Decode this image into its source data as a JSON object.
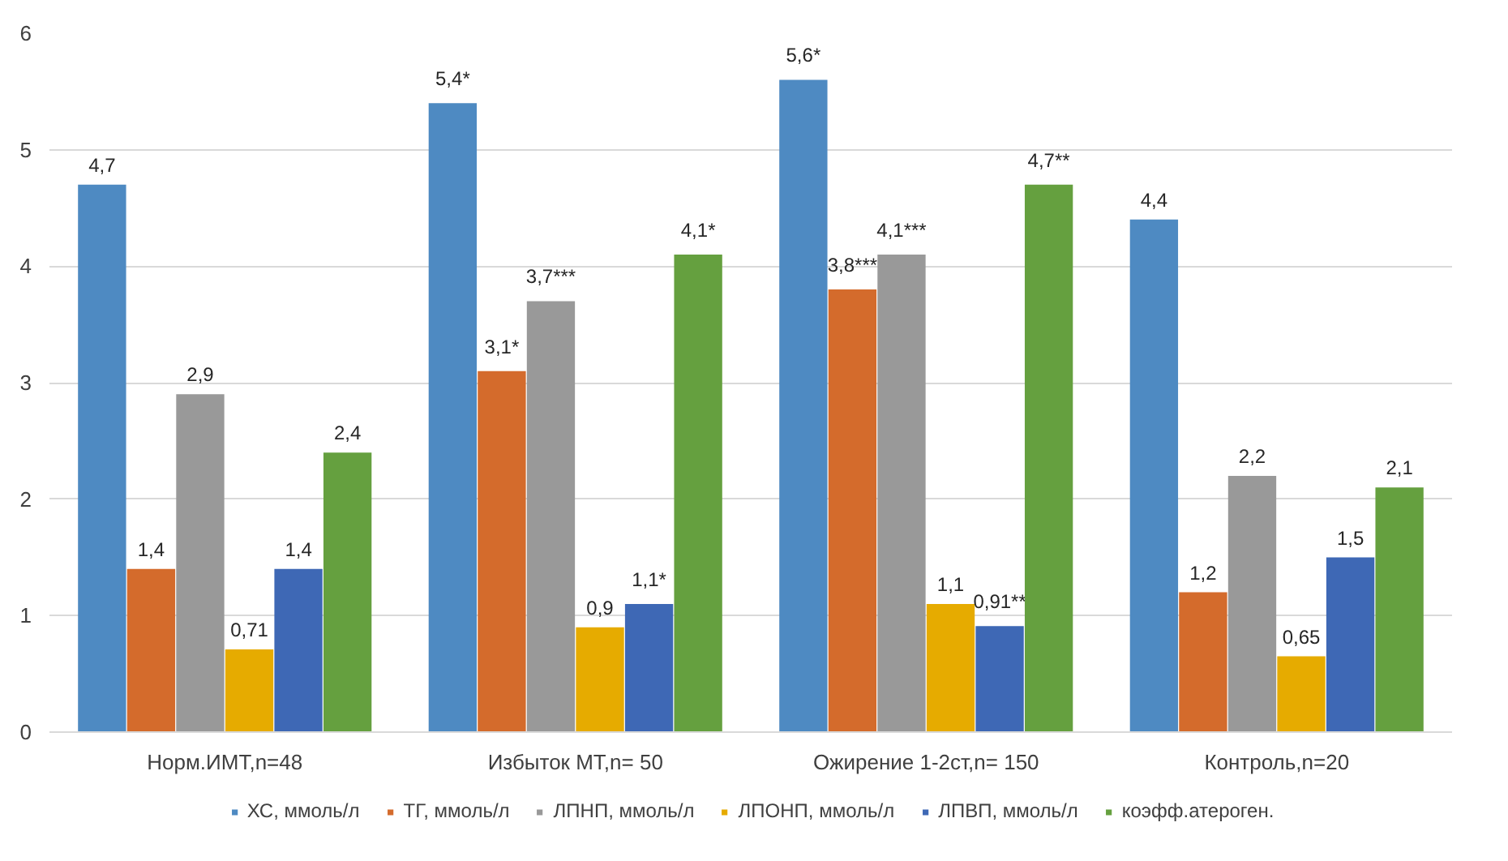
{
  "chart_data": {
    "type": "bar",
    "categories": [
      "Норм.ИМТ,n=48",
      "Избыток МТ,n= 50",
      "Ожирение 1-2ст,n= 150",
      "Контроль,n=20"
    ],
    "ylim": [
      0,
      6
    ],
    "yticks": [
      0,
      1,
      2,
      3,
      4,
      5,
      6
    ],
    "grid": "y",
    "legend": "bottom",
    "series": [
      {
        "name": "ХС, ммоль/л",
        "color": "#4e8ac2",
        "values": [
          4.7,
          5.4,
          5.6,
          4.4
        ],
        "value_labels": [
          "4,7",
          "5,4*",
          "5,6*",
          "4,4"
        ]
      },
      {
        "name": "ТГ, ммоль/л",
        "color": "#d46b2c",
        "values": [
          1.4,
          3.1,
          3.8,
          1.2
        ],
        "value_labels": [
          "1,4",
          "3,1*",
          "3,8***",
          "1,2"
        ]
      },
      {
        "name": "ЛПНП, ммоль/л",
        "color": "#999999",
        "values": [
          2.9,
          3.7,
          4.1,
          2.2
        ],
        "value_labels": [
          "2,9",
          "3,7***",
          "4,1***",
          "2,2"
        ]
      },
      {
        "name": "ЛПОНП, ммоль/л",
        "color": "#e6ab00",
        "values": [
          0.71,
          0.9,
          1.1,
          0.65
        ],
        "value_labels": [
          "0,71",
          "0,9",
          "1,1",
          "0,65"
        ]
      },
      {
        "name": "ЛПВП, ммоль/л",
        "color": "#3e68b5",
        "values": [
          1.4,
          1.1,
          0.91,
          1.5
        ],
        "value_labels": [
          "1,4",
          "1,1*",
          "0,91**",
          "1,5"
        ]
      },
      {
        "name": "коэфф.атероген.",
        "color": "#65a03f",
        "values": [
          2.4,
          4.1,
          4.7,
          2.1
        ],
        "value_labels": [
          "2,4",
          "4,1*",
          "4,7**",
          "2,1"
        ]
      }
    ]
  }
}
